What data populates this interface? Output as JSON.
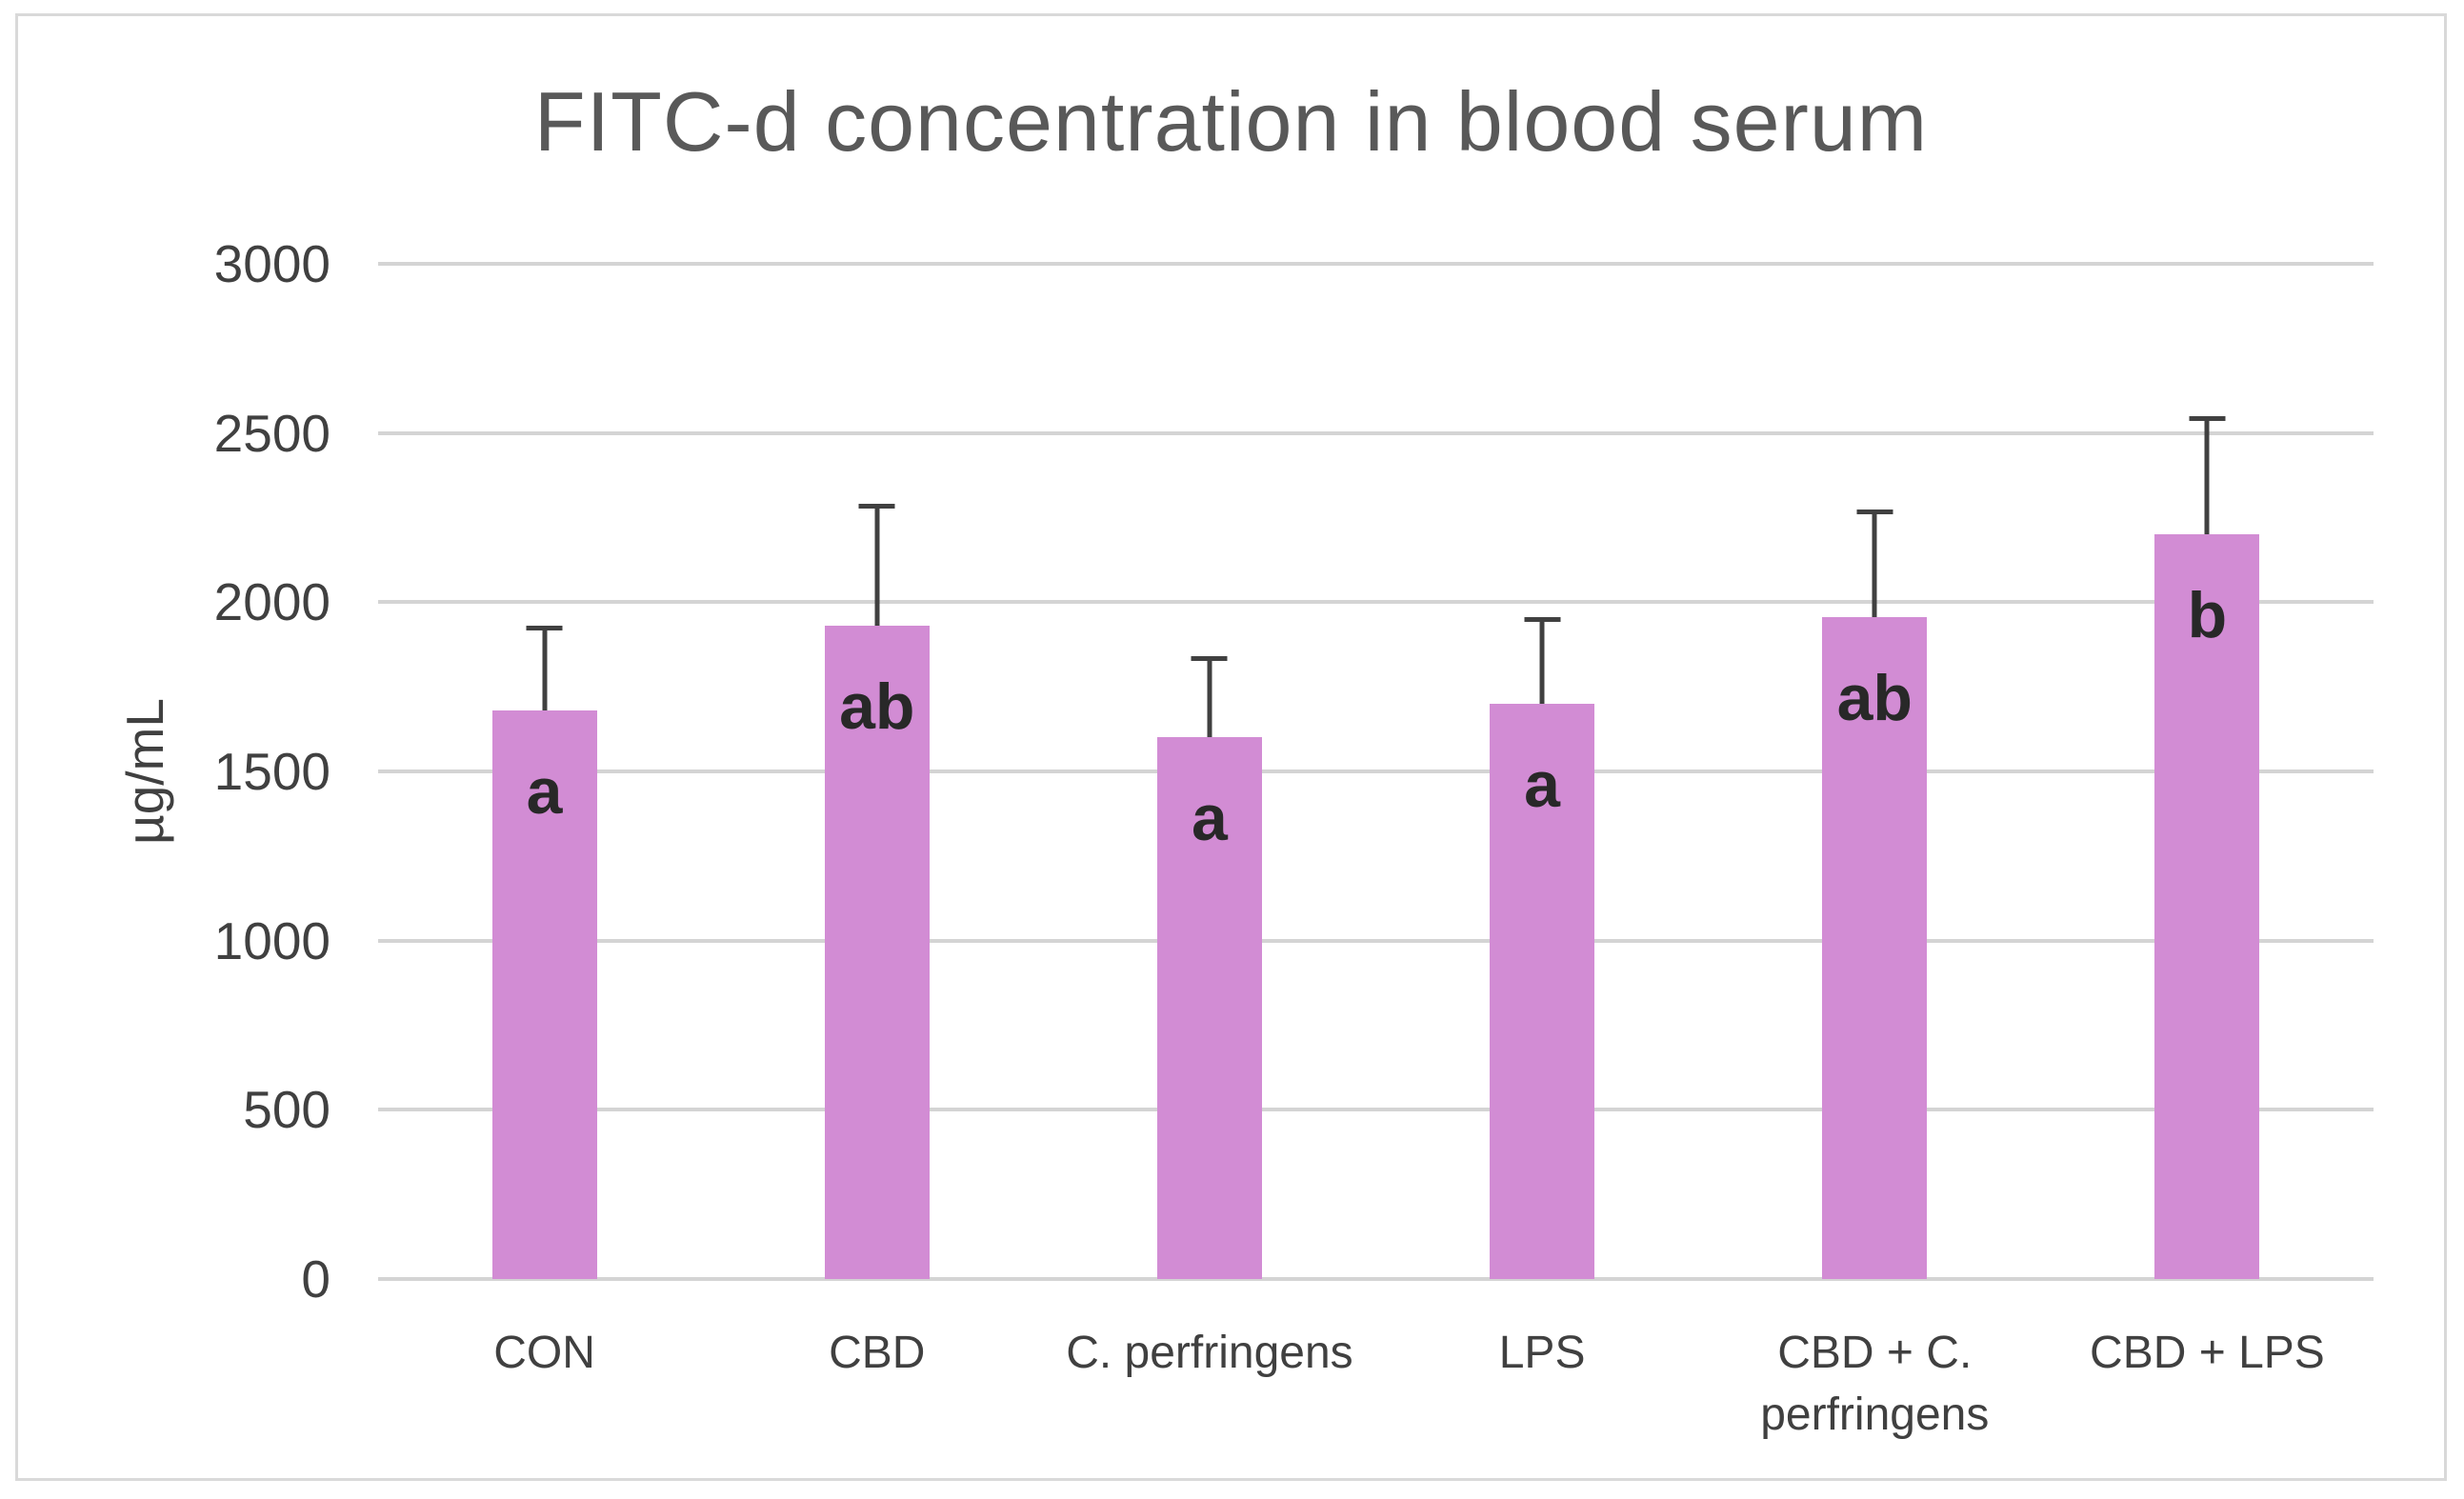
{
  "chart_data": {
    "type": "bar",
    "title": "FITC-d concentration in blood serum",
    "xlabel": "",
    "ylabel": "µg/mL",
    "ylim": [
      0,
      3000
    ],
    "yticks": [
      0,
      500,
      1000,
      1500,
      2000,
      2500,
      3000
    ],
    "grid": true,
    "legend_position": "none",
    "categories": [
      "CON",
      "CBD",
      "C. perfringens",
      "LPS",
      "CBD + C.\nperfringens",
      "CBD + LPS"
    ],
    "values": [
      1680,
      1930,
      1600,
      1700,
      1955,
      2200
    ],
    "error_up": [
      250,
      360,
      240,
      255,
      320,
      350
    ],
    "sig_letters": [
      "a",
      "ab",
      "a",
      "a",
      "ab",
      "b"
    ],
    "colors": {
      "bar_fill": "#d28cd4",
      "error_bar": "#404040",
      "gridline": "#d4d4d4",
      "title_text": "#595959",
      "axis_text": "#404040",
      "letter_text": "#282828",
      "frame_border": "#d9d9d9",
      "background": "#ffffff"
    }
  }
}
